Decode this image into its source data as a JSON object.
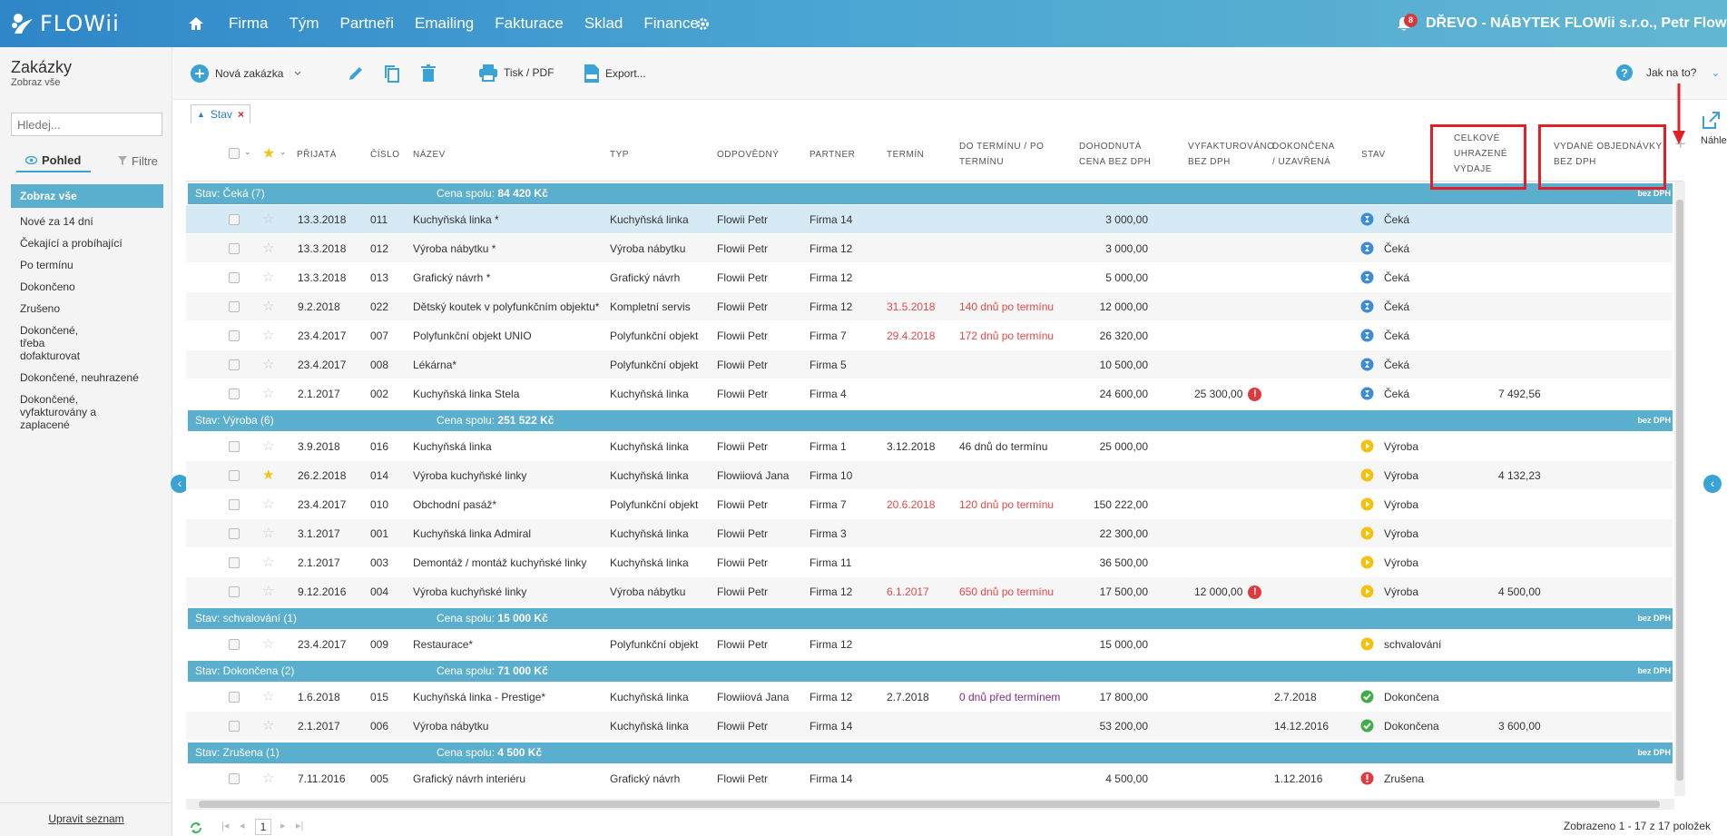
{
  "topbar": {
    "logo": "FLOWii",
    "nav": [
      "Firma",
      "Tým",
      "Partneři",
      "Emailing",
      "Fakturace",
      "Sklad",
      "Finance"
    ],
    "notifications": "8",
    "company": "DŘEVO - NÁBYTEK FLOWii s.r.o., Petr Flowii"
  },
  "sidebar": {
    "title": "Zakázky",
    "subtitle": "Zobraz vše",
    "search_placeholder": "Hledej...",
    "tab_view": "Pohled",
    "tab_filter": "Filtre",
    "items": [
      "Zobraz vše",
      "Nové za 14 dní",
      "Čekající a probíhající",
      "Po termínu",
      "Dokončeno",
      "Zrušeno",
      "Dokončené, třeba dofakturovat",
      "Dokončené, neuhrazené",
      "Dokončené, vyfakturovány a zaplacené"
    ],
    "footer": "Upravit seznam"
  },
  "toolbar": {
    "new": "Nová zakázka",
    "print": "Tisk / PDF",
    "export": "Export...",
    "help": "Jak na to?"
  },
  "filter_chip": "Stav",
  "preview_label": "Náhled",
  "columns": {
    "prijata": "PŘIJATÁ",
    "cislo": "ČÍSLO",
    "nazev": "NÁZEV",
    "typ": "TYP",
    "odpovedny": "ODPOVĚDNÝ",
    "partner": "PARTNER",
    "termin": "TERMÍN",
    "do_terminu": [
      "DO TERMÍNU / PO",
      "TERMÍNU"
    ],
    "cena": [
      "DOHODNUTÁ",
      "CENA BEZ DPH"
    ],
    "vyfakturovano": [
      "VYFAKTUROVÁNO",
      "BEZ DPH"
    ],
    "dokoncena": [
      "DOKONČENA",
      "/ UZAVŘENÁ"
    ],
    "stav": "STAV",
    "vydaje": [
      "CELKOVÉ",
      "UHRAZENÉ",
      "VÝDAJE"
    ],
    "objednavky": [
      "VYDANÉ OBJEDNÁVKY",
      "BEZ DPH"
    ]
  },
  "bez_dph": "bez DPH",
  "groups": [
    {
      "label": "Stav: Čeká (7)",
      "sum": "Cena spolu: ",
      "sum_value": "84 420 Kč",
      "rows": [
        {
          "date": "13.3.2018",
          "num": "011",
          "name": "Kuchyňská linka *",
          "type": "Kuchyňská linka",
          "resp": "Flowii Petr",
          "partner": "Firma 14",
          "term": "",
          "overdue": "",
          "price": "3 000,00",
          "invoiced": "",
          "err": false,
          "done": "",
          "status": "Čeká",
          "status_kind": "wait",
          "expenses": "",
          "starred": false
        },
        {
          "date": "13.3.2018",
          "num": "012",
          "name": "Výroba nábytku *",
          "type": "Výroba nábytku",
          "resp": "Flowii Petr",
          "partner": "Firma 12",
          "term": "",
          "overdue": "",
          "price": "3 000,00",
          "invoiced": "",
          "err": false,
          "done": "",
          "status": "Čeká",
          "status_kind": "wait",
          "expenses": "",
          "starred": false
        },
        {
          "date": "13.3.2018",
          "num": "013",
          "name": "Grafický návrh *",
          "type": "Grafický návrh",
          "resp": "Flowii Petr",
          "partner": "Firma 12",
          "term": "",
          "overdue": "",
          "price": "5 000,00",
          "invoiced": "",
          "err": false,
          "done": "",
          "status": "Čeká",
          "status_kind": "wait",
          "expenses": "",
          "starred": false
        },
        {
          "date": "9.2.2018",
          "num": "022",
          "name": "Dětský koutek v polyfunkčním objektu*",
          "type": "Kompletní servis",
          "resp": "Flowii Petr",
          "partner": "Firma 12",
          "term": "31.5.2018",
          "overdue": "140 dnů po termínu",
          "price": "12 000,00",
          "invoiced": "",
          "err": false,
          "done": "",
          "status": "Čeká",
          "status_kind": "wait",
          "expenses": "",
          "starred": false
        },
        {
          "date": "23.4.2017",
          "num": "007",
          "name": "Polyfunkční objekt UNIO",
          "type": "Polyfunkční objekt",
          "resp": "Flowii Petr",
          "partner": "Firma 7",
          "term": "29.4.2018",
          "overdue": "172 dnů po termínu",
          "price": "26 320,00",
          "invoiced": "",
          "err": false,
          "done": "",
          "status": "Čeká",
          "status_kind": "wait",
          "expenses": "",
          "starred": false
        },
        {
          "date": "23.4.2017",
          "num": "008",
          "name": "Lékárna*",
          "type": "Polyfunkční objekt",
          "resp": "Flowii Petr",
          "partner": "Firma 5",
          "term": "",
          "overdue": "",
          "price": "10 500,00",
          "invoiced": "",
          "err": false,
          "done": "",
          "status": "Čeká",
          "status_kind": "wait",
          "expenses": "",
          "starred": false
        },
        {
          "date": "2.1.2017",
          "num": "002",
          "name": "Kuchyňská linka Stela",
          "type": "Kuchyňská linka",
          "resp": "Flowii Petr",
          "partner": "Firma 4",
          "term": "",
          "overdue": "",
          "price": "24 600,00",
          "invoiced": "25 300,00",
          "err": true,
          "done": "",
          "status": "Čeká",
          "status_kind": "wait",
          "expenses": "7 492,56",
          "starred": false
        }
      ]
    },
    {
      "label": "Stav: Výroba (6)",
      "sum": "Cena spolu: ",
      "sum_value": "251 522 Kč",
      "rows": [
        {
          "date": "3.9.2018",
          "num": "016",
          "name": "Kuchyňská linka",
          "type": "Kuchyňská linka",
          "resp": "Flowii Petr",
          "partner": "Firma 1",
          "term": "3.12.2018",
          "overdue": "46 dnů do termínu",
          "price": "25 000,00",
          "invoiced": "",
          "err": false,
          "done": "",
          "status": "Výroba",
          "status_kind": "play",
          "expenses": "",
          "starred": false,
          "term_ok": true
        },
        {
          "date": "26.2.2018",
          "num": "014",
          "name": "Výroba kuchyňské linky",
          "type": "Kuchyňská linka",
          "resp": "Flowiiová Jana",
          "partner": "Firma 10",
          "term": "",
          "overdue": "",
          "price": "",
          "invoiced": "",
          "err": false,
          "done": "",
          "status": "Výroba",
          "status_kind": "play",
          "expenses": "4 132,23",
          "starred": true
        },
        {
          "date": "23.4.2017",
          "num": "010",
          "name": "Obchodní pasáž*",
          "type": "Polyfunkční objekt",
          "resp": "Flowii Petr",
          "partner": "Firma 7",
          "term": "20.6.2018",
          "overdue": "120 dnů po termínu",
          "price": "150 222,00",
          "invoiced": "",
          "err": false,
          "done": "",
          "status": "Výroba",
          "status_kind": "play",
          "expenses": "",
          "starred": false
        },
        {
          "date": "3.1.2017",
          "num": "001",
          "name": "Kuchyňská linka Admiral",
          "type": "Kuchyňská linka",
          "resp": "Flowii Petr",
          "partner": "Firma 3",
          "term": "",
          "overdue": "",
          "price": "22 300,00",
          "invoiced": "",
          "err": false,
          "done": "",
          "status": "Výroba",
          "status_kind": "play",
          "expenses": "",
          "starred": false
        },
        {
          "date": "2.1.2017",
          "num": "003",
          "name": "Demontáž / montáž kuchyňské linky",
          "type": "Kuchyňská linka",
          "resp": "Flowii Petr",
          "partner": "Firma 11",
          "term": "",
          "overdue": "",
          "price": "36 500,00",
          "invoiced": "",
          "err": false,
          "done": "",
          "status": "Výroba",
          "status_kind": "play",
          "expenses": "",
          "starred": false
        },
        {
          "date": "9.12.2016",
          "num": "004",
          "name": "Výroba kuchyňské linky",
          "type": "Výroba nábytku",
          "resp": "Flowii Petr",
          "partner": "Firma 12",
          "term": "6.1.2017",
          "overdue": "650 dnů po termínu",
          "price": "17 500,00",
          "invoiced": "12 000,00",
          "err": true,
          "done": "",
          "status": "Výroba",
          "status_kind": "play",
          "expenses": "4 500,00",
          "starred": false
        }
      ]
    },
    {
      "label": "Stav: schvalování (1)",
      "sum": "Cena spolu: ",
      "sum_value": "15 000 Kč",
      "rows": [
        {
          "date": "23.4.2017",
          "num": "009",
          "name": "Restaurace*",
          "type": "Polyfunkční objekt",
          "resp": "Flowii Petr",
          "partner": "Firma 12",
          "term": "",
          "overdue": "",
          "price": "15 000,00",
          "invoiced": "",
          "err": false,
          "done": "",
          "status": "schvalování",
          "status_kind": "play",
          "expenses": "",
          "starred": false
        }
      ]
    },
    {
      "label": "Stav: Dokončena (2)",
      "sum": "Cena spolu: ",
      "sum_value": "71 000 Kč",
      "rows": [
        {
          "date": "1.6.2018",
          "num": "015",
          "name": "Kuchyňská linka - Prestige*",
          "type": "Kuchyňská linka",
          "resp": "Flowiiová Jana",
          "partner": "Firma 12",
          "term": "2.7.2018",
          "overdue": "0 dnů před termínem",
          "price": "17 800,00",
          "invoiced": "",
          "err": false,
          "done": "2.7.2018",
          "status": "Dokončena",
          "status_kind": "done",
          "expenses": "",
          "starred": false,
          "term_ok": true,
          "purple": true
        },
        {
          "date": "2.1.2017",
          "num": "006",
          "name": "Výroba nábytku",
          "type": "Kuchyňská linka",
          "resp": "Flowii Petr",
          "partner": "Firma 14",
          "term": "",
          "overdue": "",
          "price": "53 200,00",
          "invoiced": "",
          "err": false,
          "done": "14.12.2016",
          "status": "Dokončena",
          "status_kind": "done",
          "expenses": "3 600,00",
          "starred": false
        }
      ]
    },
    {
      "label": "Stav: Zrušena (1)",
      "sum": "Cena spolu: ",
      "sum_value": "4 500 Kč",
      "rows": [
        {
          "date": "7.11.2016",
          "num": "005",
          "name": "Grafický návrh interiéru",
          "type": "Grafický návrh",
          "resp": "Flowii Petr",
          "partner": "Firma 14",
          "term": "",
          "overdue": "",
          "price": "4 500,00",
          "invoiced": "",
          "err": false,
          "done": "1.12.2016",
          "status": "Zrušena",
          "status_kind": "cancel",
          "expenses": "",
          "starred": false
        }
      ]
    }
  ],
  "pager": {
    "page": "1",
    "summary": "Zobrazeno 1 - 17 z 17 položek"
  },
  "colors": {
    "accent": "#5aafcf",
    "overdue": "#e24a4a",
    "highlight": "#e2202a"
  }
}
